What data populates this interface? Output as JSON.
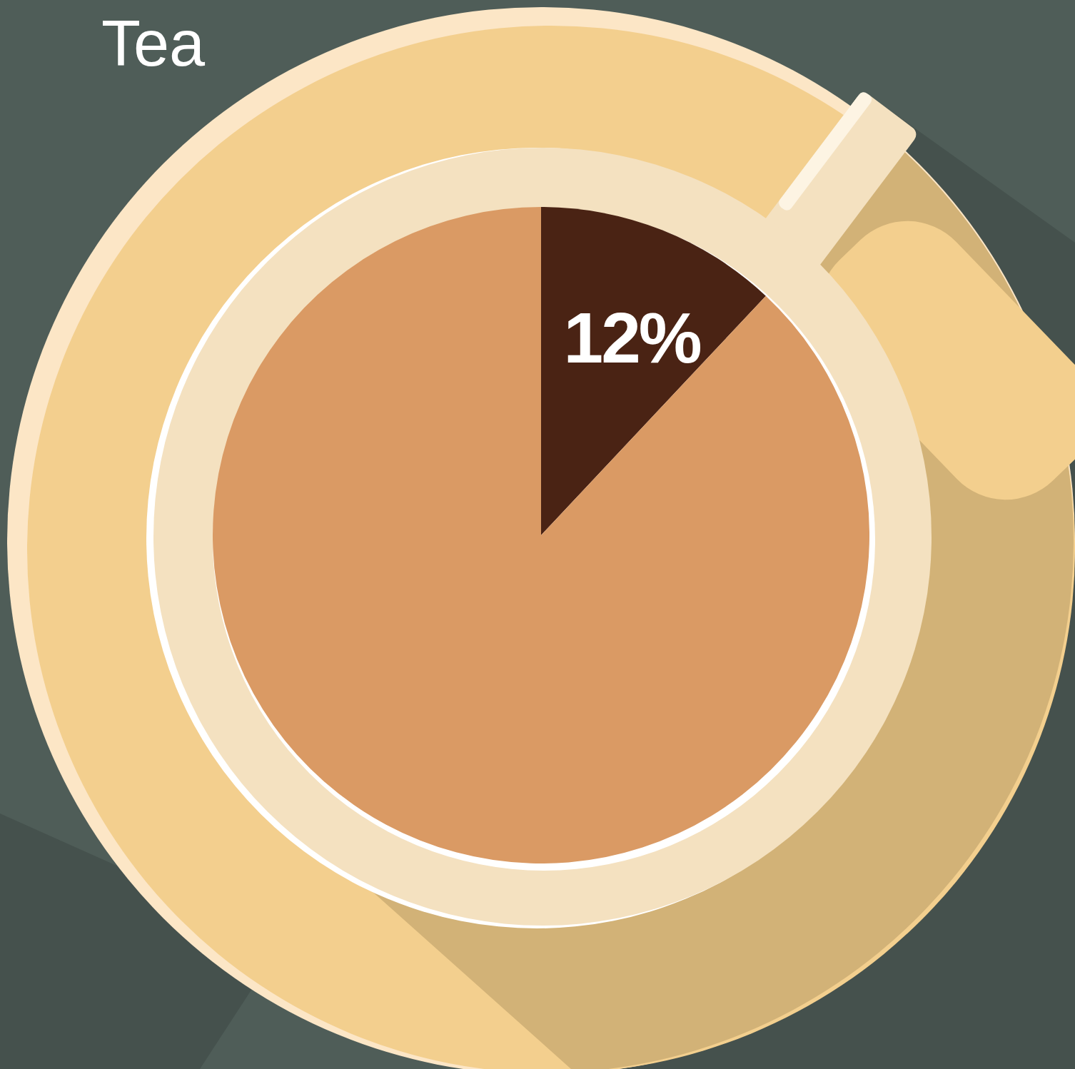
{
  "chart_data": {
    "type": "pie",
    "title": "Tea",
    "values": [
      12,
      88
    ],
    "value_labels": [
      "12%",
      null
    ],
    "colors": [
      "#4a2314",
      "#da9a64"
    ],
    "data_labels": true
  }
}
